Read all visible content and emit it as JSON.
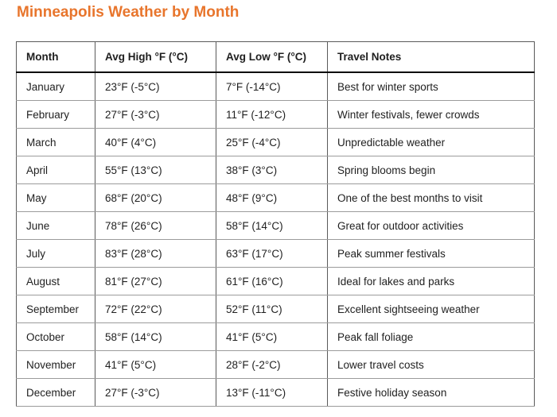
{
  "page": {
    "title": "Minneapolis Weather by Month"
  },
  "colors": {
    "title": "#E8752C",
    "text": "#1f1f1f",
    "border_strong": "#5a5a5a",
    "border_light": "#9b9b9b",
    "header_underline": "#0a0a0a"
  },
  "table": {
    "columns": [
      "Month",
      "Avg High °F (°C)",
      "Avg Low °F (°C)",
      "Travel Notes"
    ],
    "rows": [
      [
        "January",
        "23°F (-5°C)",
        "7°F (-14°C)",
        "Best for winter sports"
      ],
      [
        "February",
        "27°F (-3°C)",
        "11°F (-12°C)",
        "Winter festivals, fewer crowds"
      ],
      [
        "March",
        "40°F (4°C)",
        "25°F (-4°C)",
        "Unpredictable weather"
      ],
      [
        "April",
        "55°F (13°C)",
        "38°F (3°C)",
        "Spring blooms begin"
      ],
      [
        "May",
        "68°F (20°C)",
        "48°F (9°C)",
        "One of the best months to visit"
      ],
      [
        "June",
        "78°F (26°C)",
        "58°F (14°C)",
        "Great for outdoor activities"
      ],
      [
        "July",
        "83°F (28°C)",
        "63°F (17°C)",
        "Peak summer festivals"
      ],
      [
        "August",
        "81°F (27°C)",
        "61°F (16°C)",
        "Ideal for lakes and parks"
      ],
      [
        "September",
        "72°F (22°C)",
        "52°F (11°C)",
        "Excellent sightseeing weather"
      ],
      [
        "October",
        "58°F (14°C)",
        "41°F (5°C)",
        "Peak fall foliage"
      ],
      [
        "November",
        "41°F (5°C)",
        "28°F (-2°C)",
        "Lower travel costs"
      ],
      [
        "December",
        "27°F (-3°C)",
        "13°F (-11°C)",
        "Festive holiday season"
      ]
    ]
  }
}
